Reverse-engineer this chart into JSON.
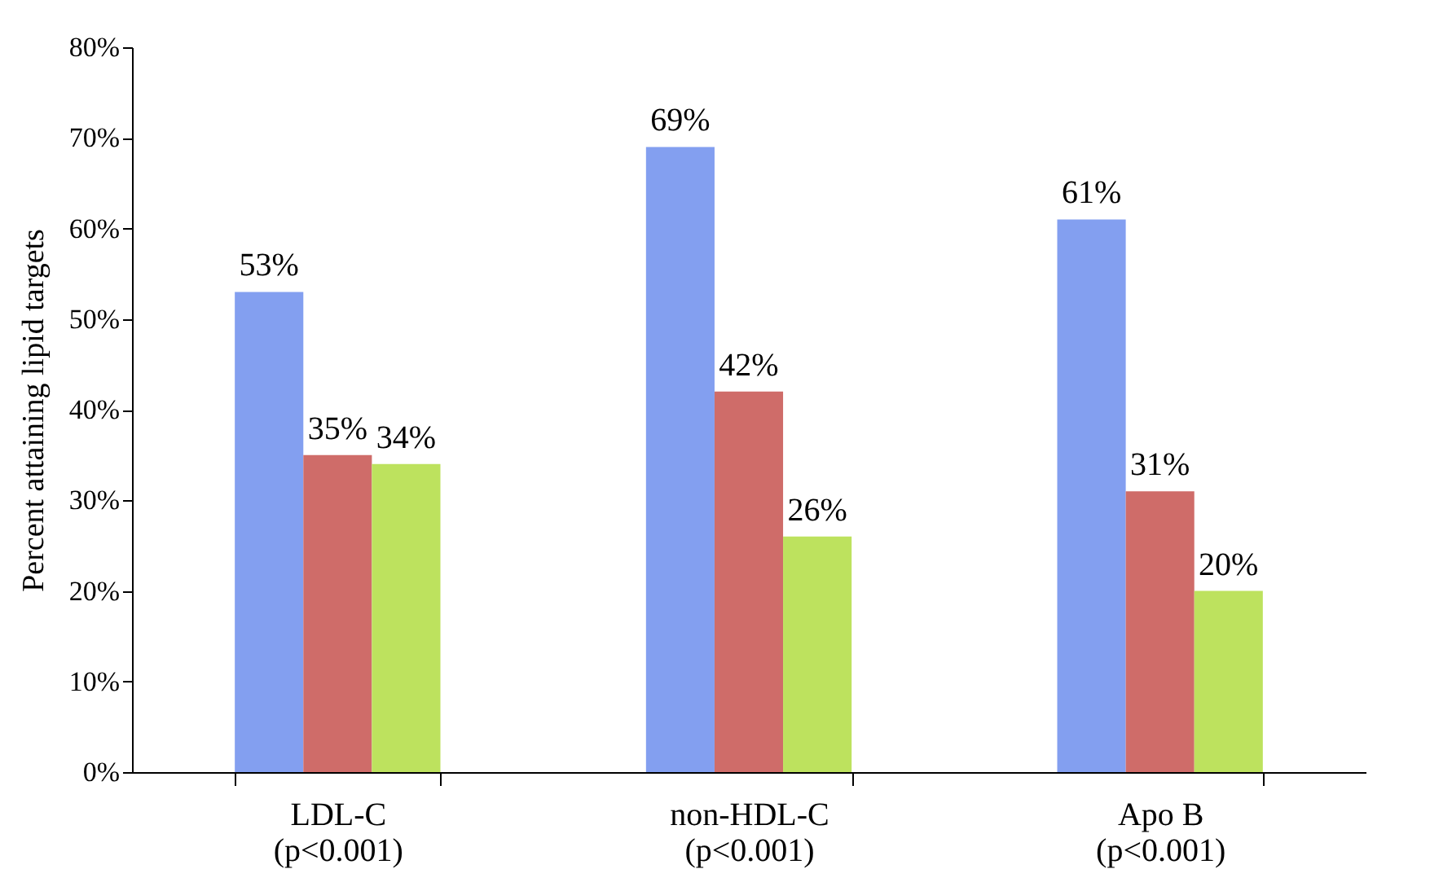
{
  "chart_data": {
    "type": "bar",
    "ylabel": "Percent attaining lipid targets",
    "categories": [
      "LDL-C\n(p<0.001)",
      "non-HDL-C\n(p<0.001)",
      "Apo B\n(p<0.001)"
    ],
    "series": [
      {
        "color": "#839ff0",
        "values": [
          53,
          69,
          61
        ],
        "value_labels": [
          "53%",
          "69%",
          "61%"
        ]
      },
      {
        "color": "#cf6c69",
        "values": [
          35,
          42,
          31
        ],
        "value_labels": [
          "35%",
          "42%",
          "31%"
        ]
      },
      {
        "color": "#bde25e",
        "values": [
          34,
          26,
          20
        ],
        "value_labels": [
          "34%",
          "26%",
          "20%"
        ]
      }
    ],
    "ylim": [
      0,
      80
    ],
    "yticks": [
      {
        "value": 0,
        "label": "0%"
      },
      {
        "value": 10,
        "label": "10%"
      },
      {
        "value": 20,
        "label": "20%"
      },
      {
        "value": 30,
        "label": "30%"
      },
      {
        "value": 40,
        "label": "40%"
      },
      {
        "value": 50,
        "label": "50%"
      },
      {
        "value": 60,
        "label": "60%"
      },
      {
        "value": 70,
        "label": "70%"
      },
      {
        "value": 80,
        "label": "80%"
      }
    ],
    "grid": false,
    "legend": false
  }
}
